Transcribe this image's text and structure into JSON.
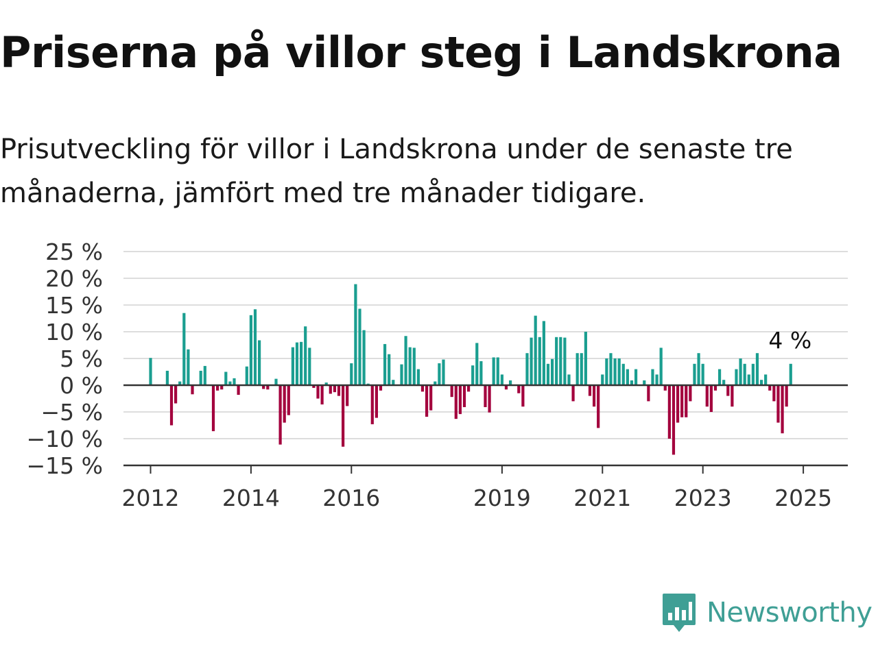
{
  "title": "Priserna på villor steg i Landskrona",
  "subtitle": "Prisutveckling för villor i Landskrona under de senaste tre månaderna, jämfört med tre månader tidigare.",
  "brand": {
    "name": "Newsworthy"
  },
  "colors": {
    "positive": "#1a9e90",
    "negative": "#a3003d",
    "grid": "#dddddd",
    "axis": "#333333",
    "brand": "#3f9f95"
  },
  "chart_data": {
    "type": "bar",
    "x_start": 2012.0,
    "x_step": 0.08333,
    "ylim": [
      -15,
      25
    ],
    "y_ticks": [
      25,
      20,
      15,
      10,
      5,
      0,
      -5,
      -10,
      -15
    ],
    "y_tick_labels": [
      "25 %",
      "20 %",
      "15 %",
      "10 %",
      "5 %",
      "0 %",
      "−5 %",
      "−10 %",
      "−15 %"
    ],
    "x_ticks": [
      2012,
      2014,
      2016,
      2019,
      2021,
      2023,
      2025
    ],
    "x_tick_labels": [
      "2012",
      "2014",
      "2016",
      "2019",
      "2021",
      "2023",
      "2025"
    ],
    "grid": true,
    "callout": "4 %",
    "values": [
      5.1,
      0,
      0,
      0,
      2.7,
      -7.5,
      -3.4,
      0.7,
      13.5,
      6.7,
      -1.7,
      0,
      2.7,
      3.6,
      0,
      -8.6,
      -1.0,
      -0.8,
      2.5,
      0.7,
      1.3,
      -1.8,
      0,
      3.5,
      13.1,
      14.2,
      8.4,
      -0.7,
      -0.8,
      0,
      1.2,
      -11.1,
      -7.0,
      -5.6,
      7.1,
      8.0,
      8.1,
      11.0,
      7.0,
      -0.5,
      -2.5,
      -3.6,
      0.5,
      -1.6,
      -1.3,
      -2.0,
      -11.5,
      -3.9,
      4.1,
      18.9,
      14.3,
      10.3,
      0.3,
      -7.3,
      -6.1,
      -1.0,
      7.7,
      5.8,
      1.0,
      0,
      3.9,
      9.2,
      7.1,
      7.0,
      3.0,
      -1.2,
      -5.9,
      -4.7,
      0.7,
      4.1,
      4.8,
      0,
      -2.2,
      -6.3,
      -5.4,
      -4.1,
      -1.2,
      3.7,
      7.9,
      4.5,
      -4.1,
      -5.1,
      5.2,
      5.2,
      2.0,
      -0.8,
      0.9,
      0,
      -1.5,
      -4.0,
      6.0,
      8.9,
      13.0,
      9.0,
      12.0,
      4.0,
      4.9,
      9.0,
      9.0,
      8.9,
      2.0,
      -3.0,
      6.0,
      6.0,
      10.0,
      -2.0,
      -4.0,
      -8.0,
      2.0,
      5.0,
      6.0,
      5.0,
      5.0,
      4.0,
      3.0,
      0.9,
      3.0,
      0,
      0.9,
      -3.0,
      3.0,
      2.0,
      7.0,
      -1.0,
      -10.0,
      -13.0,
      -7.0,
      -6.0,
      -6.0,
      -3.0,
      4.0,
      6.0,
      4.0,
      -4.0,
      -5.0,
      -1.0,
      3.0,
      1.0,
      -2.0,
      -4.0,
      3.0,
      5.0,
      4.0,
      2.0,
      4.0,
      6.0,
      1.0,
      2.0,
      -1.0,
      -3.0,
      -7.0,
      -9.0,
      -4.0,
      4.0
    ]
  }
}
